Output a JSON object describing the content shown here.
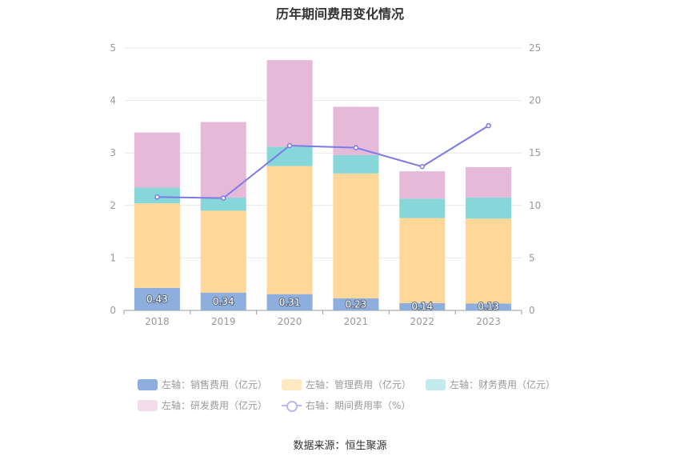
{
  "title": "历年期间费用变化情况",
  "source": "数据来源：恒生聚源",
  "chart_data": {
    "type": "bar",
    "stacked": true,
    "categories": [
      "2018",
      "2019",
      "2020",
      "2021",
      "2022",
      "2023"
    ],
    "left_axis": {
      "min": 0,
      "max": 5,
      "ticks": [
        "0",
        "1",
        "2",
        "3",
        "4",
        "5"
      ]
    },
    "right_axis": {
      "min": 0,
      "max": 25,
      "ticks": [
        "0",
        "5",
        "10",
        "15",
        "20",
        "25"
      ]
    },
    "series": [
      {
        "name": "左轴：销售费用（亿元）",
        "color": "#8eaedd",
        "values": [
          0.43,
          0.34,
          0.31,
          0.23,
          0.14,
          0.13
        ],
        "labels": [
          "0.43",
          "0.34",
          "0.31",
          "0.23",
          "0.14",
          "0.13"
        ]
      },
      {
        "name": "左轴：管理费用（亿元）",
        "color": "#ffd899",
        "values": [
          1.61,
          1.56,
          2.44,
          2.38,
          1.62,
          1.62
        ]
      },
      {
        "name": "左轴：财务费用（亿元）",
        "color": "#86d6da",
        "values": [
          0.3,
          0.25,
          0.37,
          0.35,
          0.37,
          0.4
        ]
      },
      {
        "name": "左轴：研发费用（亿元）",
        "color": "#e7b9d9",
        "values": [
          1.05,
          1.44,
          1.65,
          0.92,
          0.52,
          0.58
        ]
      }
    ],
    "line_series": {
      "name": "右轴：期间费用率（%）",
      "color": "#7b7be8",
      "values": [
        10.8,
        10.7,
        15.7,
        15.5,
        13.7,
        17.6
      ]
    },
    "legend_position": "bottom",
    "grid": true
  },
  "legend_colors": {
    "sales": "#8eaedd",
    "management": "#ffe8c2",
    "finance": "#c3ebee",
    "rnd": "#f3dcec",
    "rate": "#b8b8f8"
  }
}
